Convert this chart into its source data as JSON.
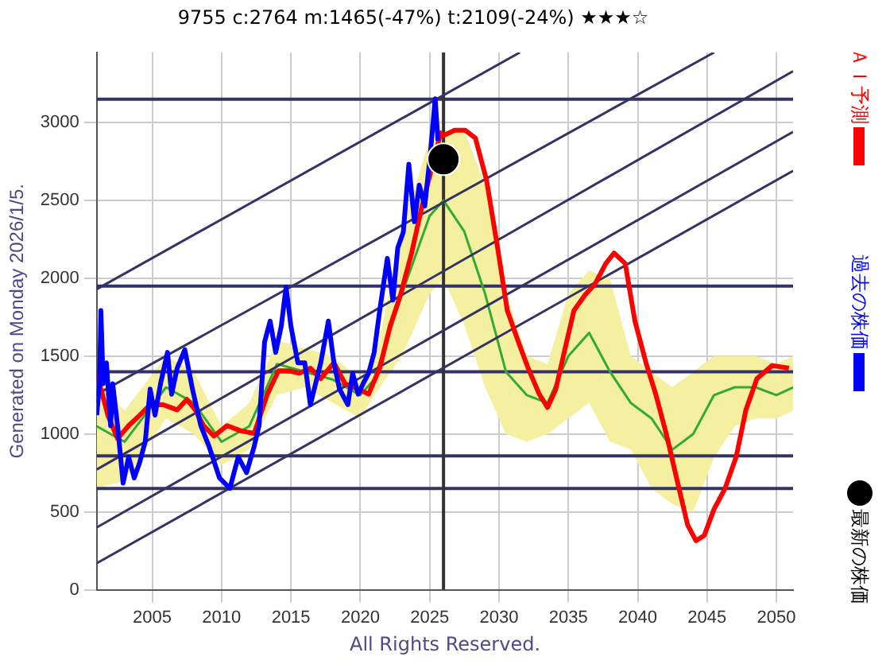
{
  "chart_data": {
    "type": "line",
    "title": "9755 c:2764 m:1465(-47%) t:2109(-24%) ★★★☆",
    "ylabel": "Generated on Monday 2026/1/5.",
    "annotations": [
      "All Rights Reserved."
    ],
    "xlim": [
      2001,
      2051.2
    ],
    "xticks": [
      2005,
      2010,
      2015,
      2020,
      2025,
      2030,
      2035,
      2040,
      2045,
      2050
    ],
    "ylim": [
      0,
      3450
    ],
    "yticks": [
      0,
      500,
      1000,
      1500,
      2000,
      2500,
      3000
    ],
    "grid": true,
    "legend": "right",
    "marker": "none",
    "line_style": "solid",
    "ref_lines": [
      {
        "axis": "y",
        "value": 3150,
        "color": "#333366"
      },
      {
        "axis": "y",
        "value": 1950,
        "color": "#333366"
      },
      {
        "axis": "y",
        "value": 1400,
        "color": "#333366"
      },
      {
        "axis": "y",
        "value": 860,
        "color": "#333366"
      },
      {
        "axis": "y",
        "value": 650,
        "color": "#333366"
      },
      {
        "axis": "x",
        "value": 2026,
        "color": "#333333"
      }
    ],
    "series": [
      {
        "color": "#33aa33",
        "x": [
          2001,
          2003,
          2006,
          2008,
          2010,
          2012,
          2014,
          2016,
          2018,
          2020,
          2021,
          2023,
          2025,
          2026,
          2027.5,
          2029,
          2030.5,
          2032,
          2033.5,
          2035,
          2036.5,
          2038,
          2039.5,
          2041,
          2042.5,
          2044,
          2045.5,
          2047,
          2048.5,
          2050,
          2051.2
        ],
        "values": [
          1050,
          950,
          1300,
          1200,
          950,
          1050,
          1450,
          1400,
          1350,
          1250,
          1350,
          1900,
          2400,
          2500,
          2300,
          1900,
          1400,
          1250,
          1200,
          1500,
          1650,
          1400,
          1200,
          1100,
          900,
          1000,
          1250,
          1300,
          1300,
          1250,
          1300
        ],
        "lower": [
          650,
          700,
          1100,
          1000,
          800,
          900,
          1250,
          1300,
          1200,
          1100,
          1250,
          1500,
          1900,
          2000,
          1700,
          1300,
          1000,
          950,
          1000,
          1100,
          1200,
          950,
          900,
          650,
          550,
          500,
          850,
          1050,
          1100,
          1100,
          1150
        ],
        "upper": [
          1350,
          1150,
          1500,
          1400,
          1050,
          1200,
          1600,
          1550,
          1500,
          1350,
          1450,
          2300,
          2900,
          2950,
          2950,
          2600,
          1900,
          1500,
          1450,
          1900,
          2050,
          2000,
          1500,
          1400,
          1300,
          1400,
          1500,
          1500,
          1500,
          1450,
          1500
        ]
      },
      {
        "color": "#333366",
        "x": [
          2001,
          2031.5
        ],
        "values": [
          1930,
          3450
        ]
      },
      {
        "color": "#333366",
        "x": [
          2001,
          2045.5
        ],
        "values": [
          1255,
          3450
        ]
      },
      {
        "color": "#333366",
        "x": [
          2001,
          2051.2
        ],
        "values": [
          772,
          3330
        ]
      },
      {
        "color": "#333366",
        "x": [
          2001,
          2051.2
        ],
        "values": [
          400,
          2940
        ]
      },
      {
        "color": "#333366",
        "x": [
          2001,
          2051.2
        ],
        "values": [
          170,
          2690
        ]
      },
      {
        "name": "ＡＩ予測",
        "color": "#ff0000",
        "x": [
          2001,
          2001.4,
          2001.8,
          2002.5,
          2003.3,
          2004.1,
          2004.85,
          2005.8,
          2006.8,
          2007.5,
          2008.1,
          2008.7,
          2009.45,
          2010.4,
          2011.4,
          2012.35,
          2013.3,
          2014.1,
          2014.85,
          2015.6,
          2016.4,
          2017.15,
          2018.1,
          2018.9,
          2019.85,
          2020.6,
          2021.4,
          2022.15,
          2022.9,
          2023.7,
          2024.45,
          2025.8,
          2026,
          2026.8,
          2027.55,
          2028.3,
          2029.1,
          2029.9,
          2030.6,
          2031.4,
          2032.1,
          2032.9,
          2033.5,
          2034.1,
          2034.7,
          2035.4,
          2036.2,
          2036.9,
          2037.7,
          2038.3,
          2039.1,
          2039.8,
          2040.6,
          2041.3,
          2042.1,
          2042.8,
          2043.6,
          2044.2,
          2044.8,
          2045.5,
          2046.3,
          2047.1,
          2047.8,
          2048.6,
          2049.7,
          2050.9
        ],
        "values": [
          1390,
          1256,
          1121,
          970,
          1054,
          1121,
          1188,
          1188,
          1155,
          1222,
          1155,
          1054,
          987,
          1054,
          1020,
          1004,
          1256,
          1406,
          1406,
          1390,
          1423,
          1356,
          1457,
          1323,
          1289,
          1256,
          1423,
          1692,
          1893,
          2162,
          2464,
          2934,
          2917,
          2951,
          2951,
          2900,
          2632,
          2195,
          1793,
          1591,
          1423,
          1256,
          1171,
          1289,
          1524,
          1793,
          1893,
          1960,
          2095,
          2162,
          2095,
          1725,
          1457,
          1256,
          987,
          718,
          416,
          315,
          349,
          517,
          651,
          853,
          1155,
          1356,
          1440,
          1423
        ]
      },
      {
        "name": "過去の株価",
        "color": "#0000ff",
        "x": [
          2001,
          2001.2,
          2001.3,
          2001.46,
          2001.7,
          2002,
          2002.15,
          2002.5,
          2002.9,
          2003.3,
          2003.7,
          2004.1,
          2004.5,
          2004.85,
          2005.2,
          2005.6,
          2006.1,
          2006.4,
          2006.8,
          2007.35,
          2007.9,
          2008.5,
          2009.1,
          2009.85,
          2010.6,
          2011.2,
          2011.8,
          2012.35,
          2012.7,
          2013.1,
          2013.5,
          2013.9,
          2014.3,
          2014.65,
          2015,
          2015.5,
          2016,
          2016.4,
          2017.15,
          2017.7,
          2018.1,
          2018.5,
          2019.1,
          2019.45,
          2019.85,
          2020.2,
          2020.6,
          2021,
          2021.4,
          2021.95,
          2022.35,
          2022.7,
          2023.1,
          2023.5,
          2023.9,
          2024.25,
          2024.65,
          2025.05,
          2025.4,
          2025.6
        ],
        "values": [
          1121,
          1323,
          1793,
          1323,
          1457,
          1054,
          1323,
          1054,
          685,
          853,
          718,
          819,
          953,
          1289,
          1121,
          1323,
          1524,
          1256,
          1423,
          1541,
          1289,
          1054,
          920,
          718,
          651,
          853,
          752,
          920,
          1054,
          1591,
          1725,
          1524,
          1692,
          1944,
          1692,
          1457,
          1457,
          1188,
          1457,
          1725,
          1457,
          1289,
          1188,
          1390,
          1256,
          1323,
          1390,
          1524,
          1793,
          2128,
          1860,
          2195,
          2296,
          2732,
          2363,
          2598,
          2464,
          2800,
          3152,
          2884
        ]
      },
      {
        "name": "最新の株価",
        "type": "scatter",
        "marker": "circle",
        "color": "#000000",
        "x": [
          2026
        ],
        "values": [
          2764
        ]
      }
    ]
  }
}
